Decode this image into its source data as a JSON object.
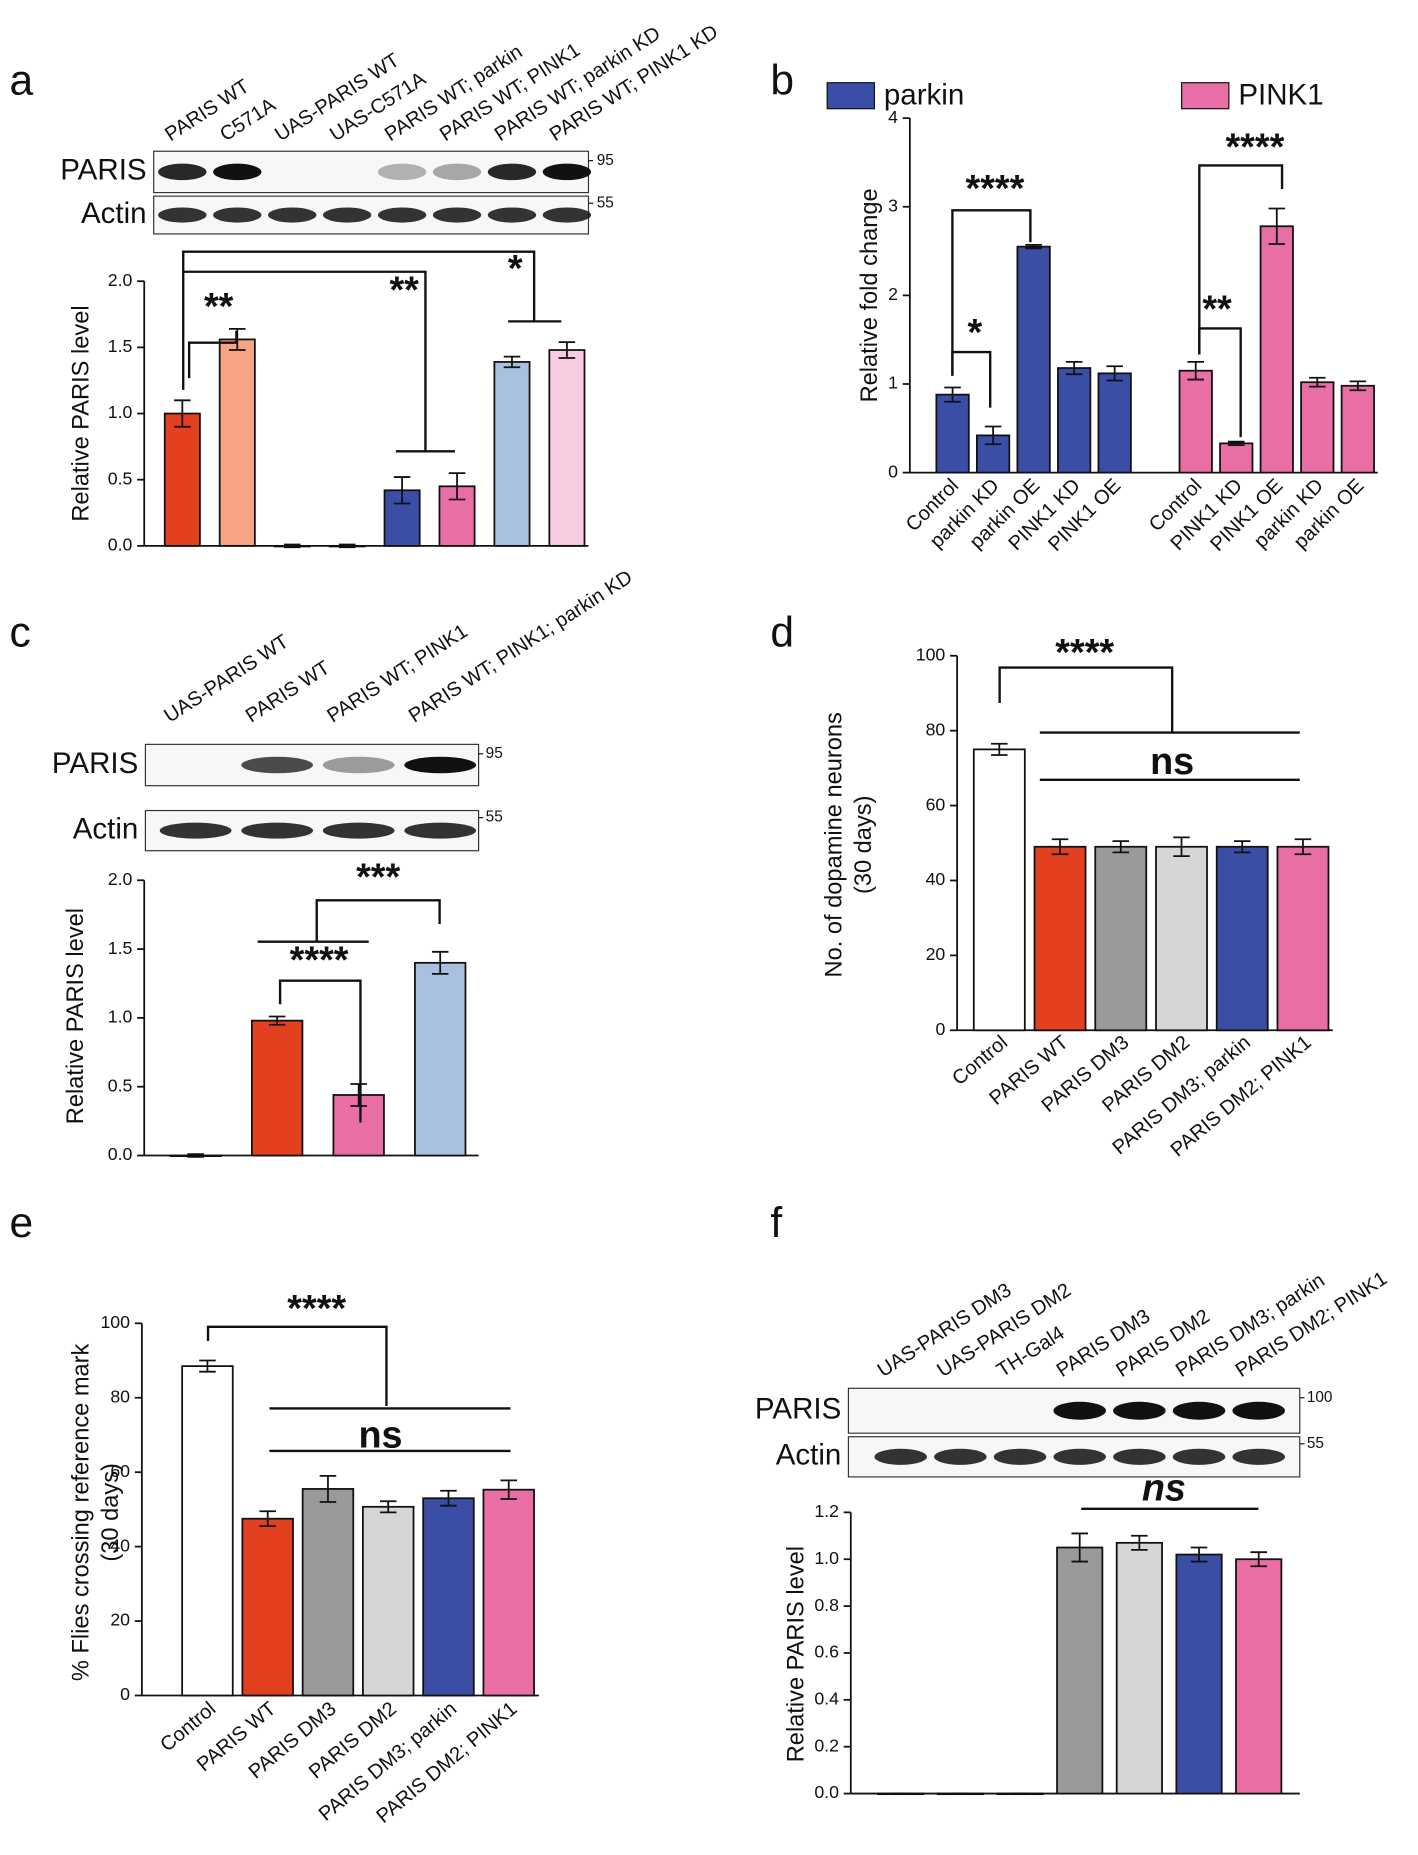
{
  "chart_data": [
    {
      "type": "bar",
      "label": "a",
      "ylabel": "Relative PARIS level",
      "categories": [
        "PARIS WT",
        "C571A",
        "UAS-PARIS WT",
        "UAS-C571A",
        "PARIS WT; parkin",
        "PARIS WT; PINK1",
        "PARIS WT; parkin KD",
        "PARIS WT; PINK1 KD"
      ],
      "values": [
        1.0,
        1.56,
        0.0,
        0.0,
        0.42,
        0.45,
        1.39,
        1.48
      ],
      "errors": [
        0.1,
        0.08,
        0.01,
        0.01,
        0.1,
        0.1,
        0.04,
        0.06
      ],
      "colors": [
        "#e2401f",
        "#f6a483",
        "#ffffff",
        "#ffffff",
        "#3b4ea6",
        "#e96ea6",
        "#a8c1e0",
        "#f8cce0"
      ],
      "ylim": [
        0,
        2
      ],
      "yticks": [
        {
          "value": 0,
          "label": "0.0"
        },
        {
          "value": 0.5,
          "label": "0.5"
        },
        {
          "value": 1,
          "label": "1.0"
        },
        {
          "value": 1.5,
          "label": "1.5"
        },
        {
          "value": 2,
          "label": "2.0"
        }
      ],
      "annotations": [
        "**",
        "**",
        "*"
      ],
      "blot": {
        "rows": [
          "PARIS",
          "Actin"
        ],
        "markers": [
          95,
          55
        ]
      }
    },
    {
      "type": "bar",
      "label": "b",
      "ylabel": "Relative fold change",
      "categories": [
        "Control",
        "parkin KD",
        "parkin OE",
        "PINK1 KD",
        "PINK1 OE",
        null,
        "Control",
        "PINK1 KD",
        "PINK1 OE",
        "parkin KD",
        "parkin OE"
      ],
      "series": [
        {
          "name": "parkin",
          "color": "#3b4ea6",
          "values": [
            0.88,
            0.42,
            2.55,
            1.18,
            1.12,
            null,
            null,
            null,
            null,
            null,
            null
          ],
          "errors": [
            0.08,
            0.1,
            0.02,
            0.07,
            0.08,
            null,
            null,
            null,
            null,
            null,
            null
          ]
        },
        {
          "name": "PINK1",
          "color": "#e96ea6",
          "values": [
            null,
            null,
            null,
            null,
            null,
            null,
            1.15,
            0.33,
            2.78,
            1.02,
            0.98
          ],
          "errors": [
            null,
            null,
            null,
            null,
            null,
            null,
            0.1,
            0.02,
            0.2,
            0.05,
            0.05
          ]
        }
      ],
      "ylim": [
        0,
        4
      ],
      "yticks": [
        0,
        1,
        2,
        3,
        4
      ],
      "annotations": [
        "****",
        "*",
        "****",
        "**"
      ]
    },
    {
      "type": "bar",
      "label": "c",
      "ylabel": "Relative PARIS level",
      "categories": [
        "UAS-PARIS WT",
        "PARIS WT",
        "PARIS WT; PINK1",
        "PARIS WT; PINK1; parkin KD"
      ],
      "values": [
        0.0,
        0.98,
        0.44,
        1.4
      ],
      "errors": [
        0.01,
        0.03,
        0.08,
        0.08
      ],
      "colors": [
        "#ffffff",
        "#e2401f",
        "#e96ea6",
        "#a8c1e0"
      ],
      "ylim": [
        0,
        2
      ],
      "yticks": [
        {
          "value": 0,
          "label": "0.0"
        },
        {
          "value": 0.5,
          "label": "0.5"
        },
        {
          "value": 1,
          "label": "1.0"
        },
        {
          "value": 1.5,
          "label": "1.5"
        },
        {
          "value": 2,
          "label": "2.0"
        }
      ],
      "annotations": [
        "***",
        "****"
      ],
      "blot": {
        "rows": [
          "PARIS",
          "Actin"
        ],
        "markers": [
          95,
          55
        ]
      }
    },
    {
      "type": "bar",
      "label": "d",
      "ylabel": [
        "No. of dopamine neurons",
        "(30 days)"
      ],
      "categories": [
        "Control",
        "PARIS WT",
        "PARIS DM3",
        "PARIS DM2",
        "PARIS DM3; parkin",
        "PARIS DM2; PINK1"
      ],
      "values": [
        75,
        49,
        49,
        49,
        49,
        49
      ],
      "errors": [
        1.5,
        2,
        1.5,
        2.5,
        1.5,
        2
      ],
      "colors": [
        "#ffffff",
        "#e2401f",
        "#9a9a9a",
        "#d6d6d6",
        "#3b4ea6",
        "#e96ea6"
      ],
      "ylim": [
        0,
        100
      ],
      "yticks": [
        0,
        20,
        40,
        60,
        80,
        100
      ],
      "annotations": [
        "****",
        "ns"
      ]
    },
    {
      "type": "bar",
      "label": "e",
      "ylabel": [
        "% Flies crossing reference mark",
        "(30 days)"
      ],
      "categories": [
        "Control",
        "PARIS WT",
        "PARIS DM3",
        "PARIS DM2",
        "PARIS DM3; parkin",
        "PARIS DM2; PINK1"
      ],
      "values": [
        88.5,
        47.5,
        55.5,
        50.7,
        53,
        55.3
      ],
      "errors": [
        1.5,
        2,
        3.5,
        1.5,
        2,
        2.5
      ],
      "colors": [
        "#ffffff",
        "#e2401f",
        "#9a9a9a",
        "#d6d6d6",
        "#3b4ea6",
        "#e96ea6"
      ],
      "ylim": [
        0,
        100
      ],
      "yticks": [
        0,
        20,
        40,
        60,
        80,
        100
      ],
      "annotations": [
        "****",
        "ns"
      ]
    },
    {
      "type": "bar",
      "label": "f",
      "ylabel": "Relative PARIS level",
      "categories": [
        "UAS-PARIS DM3",
        "UAS-PARIS DM2",
        "TH-Gal4",
        "PARIS DM3",
        "PARIS DM2",
        "PARIS DM3; parkin",
        "PARIS DM2; PINK1"
      ],
      "values": [
        0.0,
        0.0,
        0.0,
        1.05,
        1.07,
        1.02,
        1.0
      ],
      "errors": [
        0,
        0,
        0,
        0.06,
        0.03,
        0.03,
        0.03
      ],
      "colors": [
        "#ffffff",
        "#ffffff",
        "#ffffff",
        "#9a9a9a",
        "#d6d6d6",
        "#3b4ea6",
        "#e96ea6"
      ],
      "ylim": [
        0,
        1.2
      ],
      "yticks": [
        {
          "value": 0,
          "label": "0.0"
        },
        {
          "value": 0.2,
          "label": "0.2"
        },
        {
          "value": 0.4,
          "label": "0.4"
        },
        {
          "value": 0.6,
          "label": "0.6"
        },
        {
          "value": 0.8,
          "label": "0.8"
        },
        {
          "value": 1,
          "label": "1.0"
        },
        {
          "value": 1.2,
          "label": "1.2"
        }
      ],
      "annotations": [
        "ns"
      ],
      "blot": {
        "rows": [
          "PARIS",
          "Actin"
        ],
        "markers": [
          100,
          55
        ]
      }
    }
  ]
}
